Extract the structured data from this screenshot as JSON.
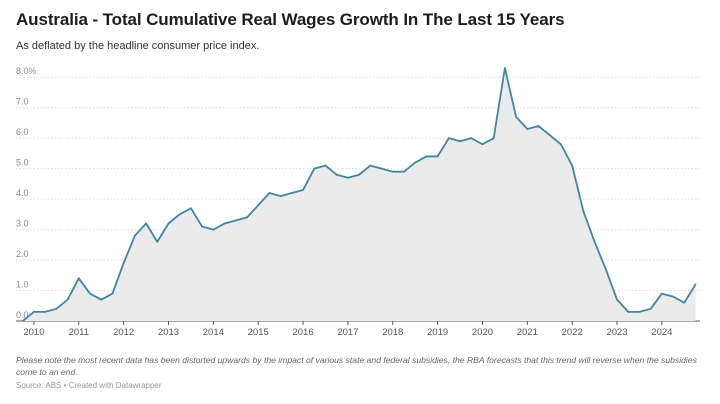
{
  "chart_data": {
    "type": "area",
    "title": "Australia - Total Cumulative Real Wages Growth In The Last 15 Years",
    "subtitle": "As deflated by the headline consumer price index.",
    "xlabel": "",
    "ylabel": "",
    "ylim": [
      0,
      8.5
    ],
    "xlim": [
      2009.6,
      2024.85
    ],
    "grid": true,
    "y_ticks": [
      {
        "value": 0,
        "label": "0.0"
      },
      {
        "value": 1,
        "label": "1.0"
      },
      {
        "value": 2,
        "label": "2.0"
      },
      {
        "value": 3,
        "label": "3.0"
      },
      {
        "value": 4,
        "label": "4.0"
      },
      {
        "value": 5,
        "label": "5.0"
      },
      {
        "value": 6,
        "label": "6.0"
      },
      {
        "value": 7,
        "label": "7.0"
      },
      {
        "value": 8,
        "label": "8.0%"
      }
    ],
    "x_ticks": [
      {
        "value": 2010,
        "label": "2010"
      },
      {
        "value": 2011,
        "label": "2011"
      },
      {
        "value": 2012,
        "label": "2012"
      },
      {
        "value": 2013,
        "label": "2013"
      },
      {
        "value": 2014,
        "label": "2014"
      },
      {
        "value": 2015,
        "label": "2015"
      },
      {
        "value": 2016,
        "label": "2016"
      },
      {
        "value": 2017,
        "label": "2017"
      },
      {
        "value": 2018,
        "label": "2018"
      },
      {
        "value": 2019,
        "label": "2019"
      },
      {
        "value": 2020,
        "label": "2020"
      },
      {
        "value": 2021,
        "label": "2021"
      },
      {
        "value": 2022,
        "label": "2022"
      },
      {
        "value": 2023,
        "label": "2023"
      },
      {
        "value": 2024,
        "label": "2024"
      }
    ],
    "line_color": "#3d87a8",
    "fill_color": "#ebebeb",
    "series": [
      {
        "x": [
          2009.75,
          2010,
          2010.25,
          2010.5,
          2010.75,
          2011,
          2011.25,
          2011.5,
          2011.75,
          2012,
          2012.25,
          2012.5,
          2012.75,
          2013,
          2013.25,
          2013.5,
          2013.75,
          2014,
          2014.25,
          2014.5,
          2014.75,
          2015,
          2015.25,
          2015.5,
          2015.75,
          2016,
          2016.25,
          2016.5,
          2016.75,
          2017,
          2017.25,
          2017.5,
          2017.75,
          2018,
          2018.25,
          2018.5,
          2018.75,
          2019,
          2019.25,
          2019.5,
          2019.75,
          2020,
          2020.25,
          2020.5,
          2020.75,
          2021,
          2021.25,
          2021.5,
          2021.75,
          2022,
          2022.25,
          2022.5,
          2022.75,
          2023,
          2023.25,
          2023.5,
          2023.75,
          2024,
          2024.25,
          2024.5,
          2024.75
        ],
        "values": [
          0.0,
          0.3,
          0.3,
          0.4,
          0.7,
          1.4,
          0.9,
          0.7,
          0.9,
          1.9,
          2.8,
          3.2,
          2.6,
          3.2,
          3.5,
          3.7,
          3.1,
          3.0,
          3.2,
          3.3,
          3.4,
          3.8,
          4.2,
          4.1,
          4.2,
          4.3,
          5.0,
          5.1,
          4.8,
          4.7,
          4.8,
          5.1,
          5.0,
          4.9,
          4.9,
          5.2,
          5.4,
          5.4,
          6.0,
          5.9,
          6.0,
          5.8,
          6.0,
          8.3,
          6.7,
          6.3,
          6.4,
          6.1,
          5.8,
          5.1,
          3.6,
          2.6,
          1.7,
          0.7,
          0.3,
          0.3,
          0.4,
          0.9,
          0.8,
          0.6,
          1.2
        ]
      }
    ]
  },
  "note": "Please note the most recent data has been distorted upwards by the impact of various state and federal subsidies, the RBA forecasts that this trend will reverse when the subsidies come to an end.",
  "source": "Source: ABS • Created with Datawrapper"
}
